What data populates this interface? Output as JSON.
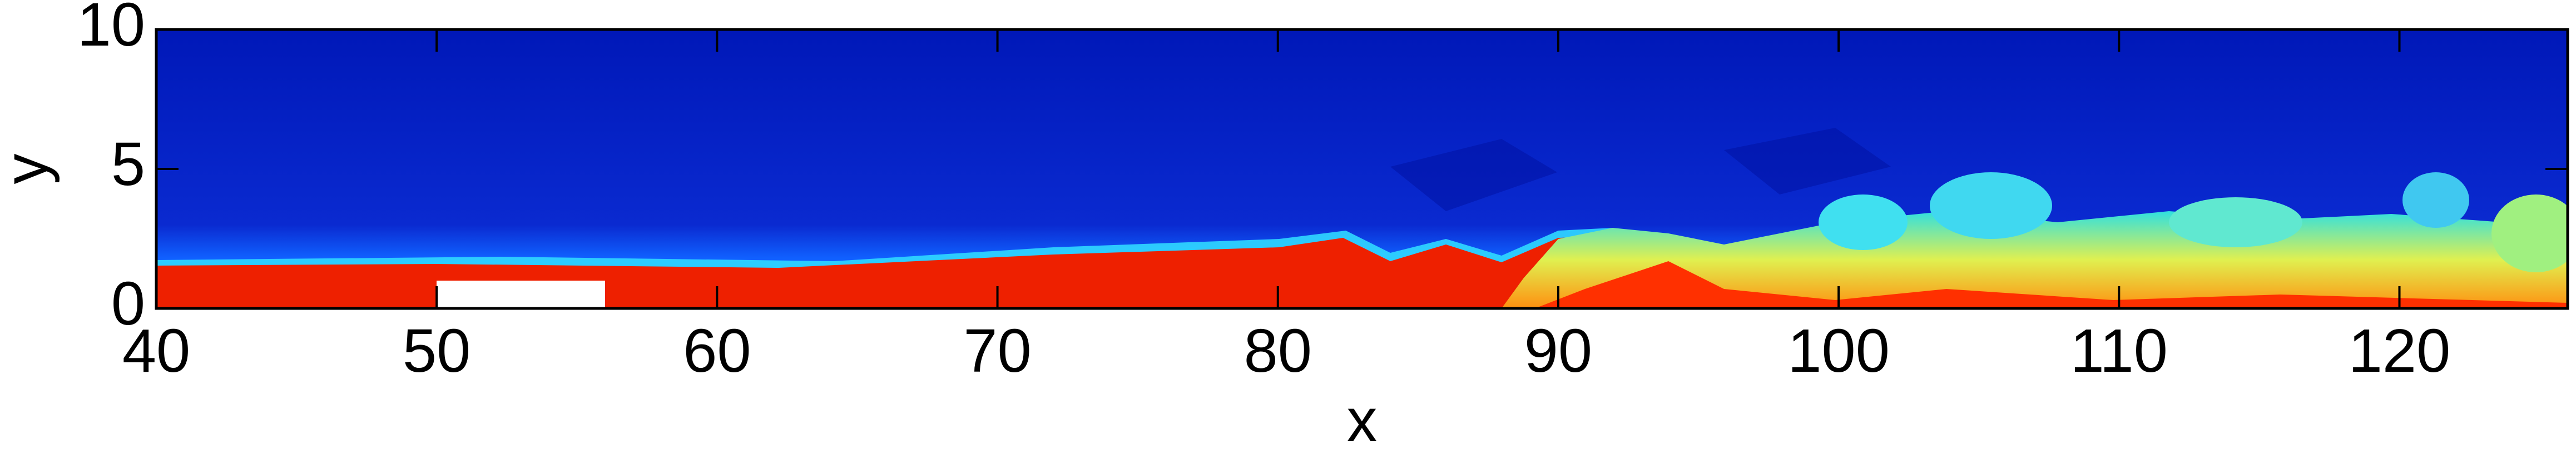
{
  "chart_data": {
    "type": "heatmap",
    "x_label": "x",
    "y_label": "y",
    "xlim": [
      40,
      126
    ],
    "ylim": [
      0,
      10
    ],
    "xticks": [
      40,
      50,
      60,
      70,
      80,
      90,
      100,
      110,
      120
    ],
    "yticks": [
      0,
      5,
      10
    ]
  }
}
